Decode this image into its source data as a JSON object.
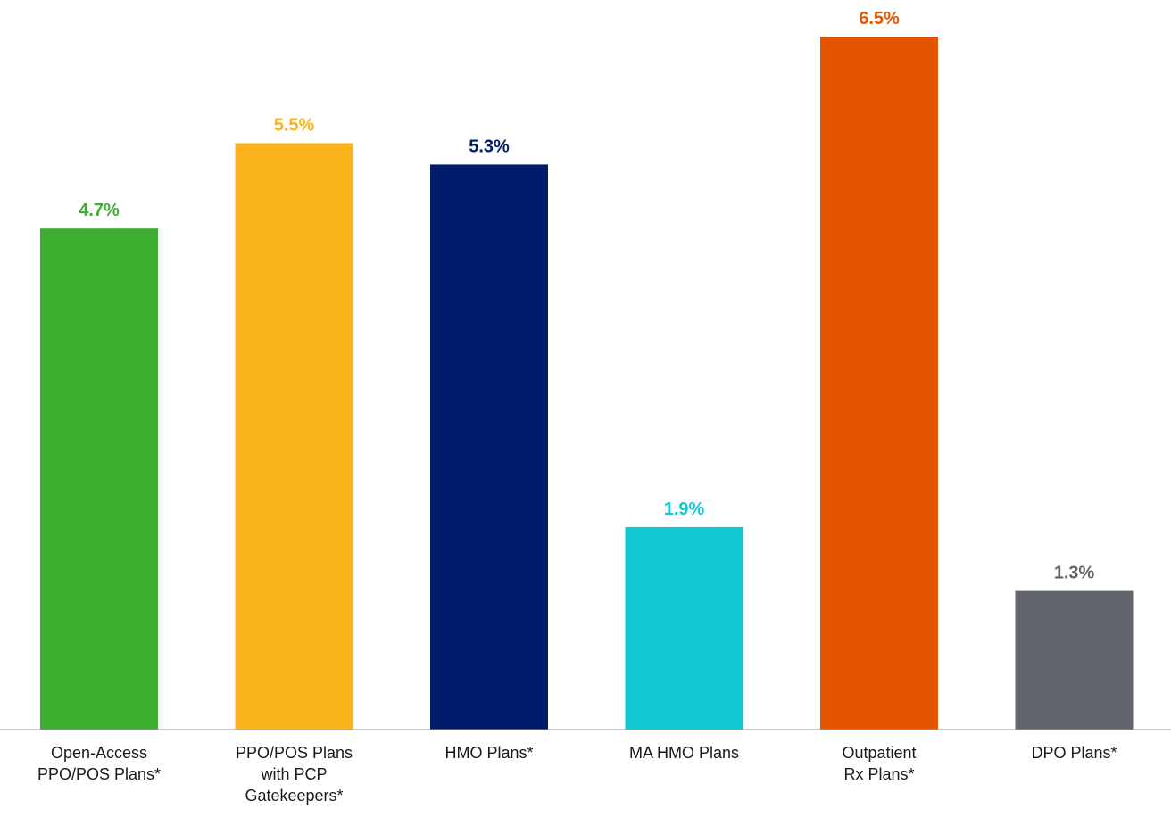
{
  "chart_data": {
    "type": "bar",
    "title": "",
    "xlabel": "",
    "ylabel": "",
    "ylim": [
      0,
      6.5
    ],
    "grid": false,
    "legend": "none",
    "value_suffix": "%",
    "bars": [
      {
        "label_lines": [
          "Open-Access",
          "PPO/POS Plans*"
        ],
        "value": 4.7,
        "display": "4.7%",
        "color": "#3cae2f"
      },
      {
        "label_lines": [
          "PPO/POS Plans",
          "with PCP",
          "Gatekeepers*"
        ],
        "value": 5.5,
        "display": "5.5%",
        "color": "#fbb41e"
      },
      {
        "label_lines": [
          "HMO Plans*"
        ],
        "value": 5.3,
        "display": "5.3%",
        "color": "#001c6b"
      },
      {
        "label_lines": [
          "MA HMO Plans"
        ],
        "value": 1.9,
        "display": "1.9%",
        "color": "#13c7d4"
      },
      {
        "label_lines": [
          "Outpatient",
          "Rx Plans*"
        ],
        "value": 6.5,
        "display": "6.5%",
        "color": "#e45500"
      },
      {
        "label_lines": [
          "DPO Plans*"
        ],
        "value": 1.3,
        "display": "1.3%",
        "color": "#62656c"
      }
    ]
  }
}
